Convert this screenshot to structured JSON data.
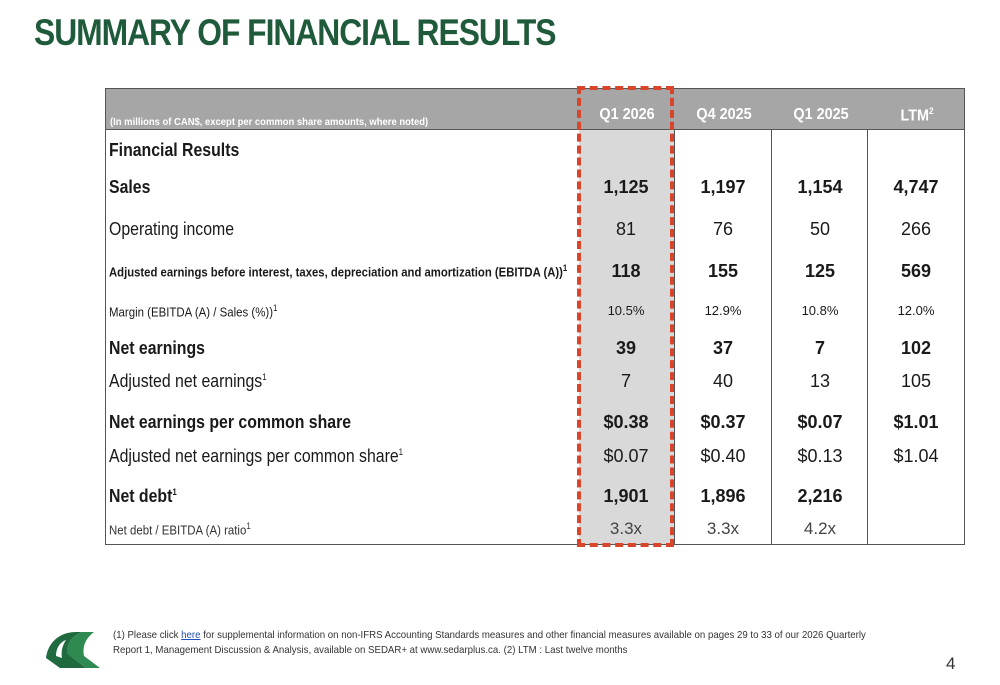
{
  "title": "SUMMARY OF FINANCIAL RESULTS",
  "table": {
    "header_note": "(In millions of CAN$, except per common share amounts, where noted)",
    "columns": [
      "Q1 2026",
      "Q4 2025",
      "Q1 2025",
      "LTM"
    ],
    "ltm_footnote_mark": "2",
    "section_title": "Financial Results",
    "rows": [
      {
        "label": "Sales",
        "sup": "",
        "values": [
          "1,125",
          "1,197",
          "1,154",
          "4,747"
        ]
      },
      {
        "label": "Operating income",
        "sup": "",
        "values": [
          "81",
          "76",
          "50",
          "266"
        ]
      },
      {
        "label": "Adjusted earnings before interest, taxes, depreciation and amortization (EBITDA (A))",
        "sup": "1",
        "values": [
          "118",
          "155",
          "125",
          "569"
        ]
      },
      {
        "label": "Margin (EBITDA (A) / Sales (%))",
        "sup": "1",
        "values": [
          "10.5%",
          "12.9%",
          "10.8%",
          "12.0%"
        ]
      },
      {
        "label": "Net earnings",
        "sup": "",
        "values": [
          "39",
          "37",
          "7",
          "102"
        ]
      },
      {
        "label": "Adjusted net earnings",
        "sup": "1",
        "values": [
          "7",
          "40",
          "13",
          "105"
        ]
      },
      {
        "label": "Net earnings per common share",
        "sup": "",
        "values": [
          "$0.38",
          "$0.37",
          "$0.07",
          "$1.01"
        ]
      },
      {
        "label": "Adjusted net earnings per common share",
        "sup": "1",
        "values": [
          "$0.07",
          "$0.40",
          "$0.13",
          "$1.04"
        ]
      },
      {
        "label": "Net debt",
        "sup": "1",
        "values": [
          "1,901",
          "1,896",
          "2,216",
          ""
        ]
      },
      {
        "label": "Net debt / EBITDA (A) ratio",
        "sup": "1",
        "values": [
          "3.3x",
          "3.3x",
          "4.2x",
          ""
        ]
      }
    ]
  },
  "footnote": {
    "prefix": "(1) Please click ",
    "link_text": "here",
    "suffix": " for supplemental information on non-IFRS Accounting Standards measures and other financial measures available on pages 29 to 33 of our 2026 Quarterly Report 1, Management Discussion & Analysis, available on SEDAR+ at www.sedarplus.ca. (2) LTM : Last twelve months"
  },
  "page_number": "4",
  "colors": {
    "title_green": "#1f5a3a",
    "header_gray": "#a6a6a6",
    "highlight_gray": "#d9d9d9",
    "dash_red": "#d9452b"
  }
}
